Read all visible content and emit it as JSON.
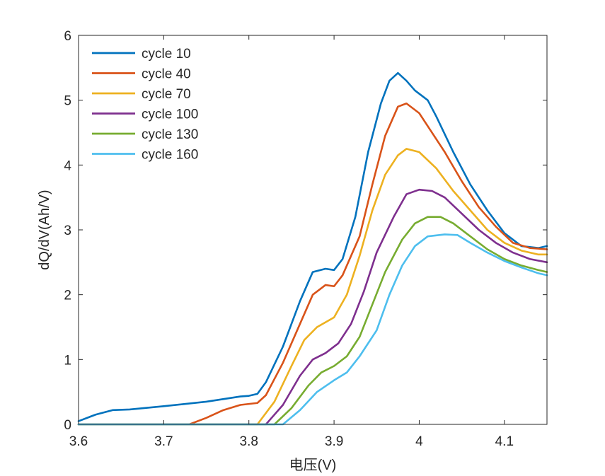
{
  "chart_data": {
    "type": "line",
    "title": "",
    "xlabel": "电压(V)",
    "ylabel": "dQ/dV(Ah/V)",
    "xlim": [
      3.6,
      4.15
    ],
    "ylim": [
      0,
      6
    ],
    "x_ticks": [
      3.6,
      3.7,
      3.8,
      3.9,
      4.0,
      4.1
    ],
    "x_tick_labels": [
      "3.6",
      "3.7",
      "3.8",
      "3.9",
      "4",
      "4.1"
    ],
    "y_ticks": [
      0,
      1,
      2,
      3,
      4,
      5,
      6
    ],
    "y_tick_labels": [
      "0",
      "1",
      "2",
      "3",
      "4",
      "5",
      "6"
    ],
    "grid": false,
    "legend_position": "top-left",
    "series": [
      {
        "name": "cycle 10",
        "color": "#0072BD",
        "points": [
          [
            3.6,
            0.05
          ],
          [
            3.62,
            0.15
          ],
          [
            3.64,
            0.22
          ],
          [
            3.66,
            0.23
          ],
          [
            3.7,
            0.28
          ],
          [
            3.75,
            0.35
          ],
          [
            3.79,
            0.43
          ],
          [
            3.8,
            0.44
          ],
          [
            3.81,
            0.47
          ],
          [
            3.82,
            0.65
          ],
          [
            3.84,
            1.2
          ],
          [
            3.86,
            1.9
          ],
          [
            3.875,
            2.35
          ],
          [
            3.89,
            2.4
          ],
          [
            3.9,
            2.38
          ],
          [
            3.91,
            2.55
          ],
          [
            3.925,
            3.2
          ],
          [
            3.94,
            4.2
          ],
          [
            3.955,
            4.95
          ],
          [
            3.965,
            5.3
          ],
          [
            3.975,
            5.42
          ],
          [
            3.985,
            5.3
          ],
          [
            3.995,
            5.15
          ],
          [
            4.01,
            5.0
          ],
          [
            4.02,
            4.75
          ],
          [
            4.04,
            4.2
          ],
          [
            4.06,
            3.7
          ],
          [
            4.08,
            3.3
          ],
          [
            4.1,
            2.95
          ],
          [
            4.12,
            2.75
          ],
          [
            4.14,
            2.72
          ],
          [
            4.15,
            2.75
          ]
        ]
      },
      {
        "name": "cycle 40",
        "color": "#D95319",
        "points": [
          [
            3.6,
            0
          ],
          [
            3.73,
            0
          ],
          [
            3.75,
            0.1
          ],
          [
            3.77,
            0.22
          ],
          [
            3.79,
            0.3
          ],
          [
            3.81,
            0.33
          ],
          [
            3.82,
            0.45
          ],
          [
            3.84,
            0.95
          ],
          [
            3.86,
            1.55
          ],
          [
            3.875,
            2.0
          ],
          [
            3.89,
            2.15
          ],
          [
            3.9,
            2.13
          ],
          [
            3.91,
            2.3
          ],
          [
            3.93,
            2.9
          ],
          [
            3.945,
            3.7
          ],
          [
            3.96,
            4.45
          ],
          [
            3.975,
            4.9
          ],
          [
            3.985,
            4.95
          ],
          [
            4.0,
            4.8
          ],
          [
            4.01,
            4.6
          ],
          [
            4.03,
            4.2
          ],
          [
            4.05,
            3.75
          ],
          [
            4.07,
            3.35
          ],
          [
            4.09,
            3.05
          ],
          [
            4.11,
            2.8
          ],
          [
            4.13,
            2.72
          ],
          [
            4.15,
            2.7
          ]
        ]
      },
      {
        "name": "cycle 70",
        "color": "#EDB120",
        "points": [
          [
            3.6,
            0
          ],
          [
            3.81,
            0
          ],
          [
            3.83,
            0.35
          ],
          [
            3.85,
            0.9
          ],
          [
            3.865,
            1.3
          ],
          [
            3.88,
            1.5
          ],
          [
            3.9,
            1.65
          ],
          [
            3.915,
            2.0
          ],
          [
            3.93,
            2.6
          ],
          [
            3.945,
            3.3
          ],
          [
            3.96,
            3.85
          ],
          [
            3.975,
            4.15
          ],
          [
            3.985,
            4.25
          ],
          [
            4.0,
            4.2
          ],
          [
            4.02,
            3.95
          ],
          [
            4.04,
            3.6
          ],
          [
            4.06,
            3.3
          ],
          [
            4.08,
            3.0
          ],
          [
            4.1,
            2.8
          ],
          [
            4.12,
            2.68
          ],
          [
            4.14,
            2.62
          ],
          [
            4.15,
            2.62
          ]
        ]
      },
      {
        "name": "cycle 100",
        "color": "#7E2F8E",
        "points": [
          [
            3.6,
            0
          ],
          [
            3.82,
            0
          ],
          [
            3.84,
            0.3
          ],
          [
            3.86,
            0.75
          ],
          [
            3.875,
            1.0
          ],
          [
            3.89,
            1.1
          ],
          [
            3.905,
            1.25
          ],
          [
            3.92,
            1.55
          ],
          [
            3.935,
            2.05
          ],
          [
            3.95,
            2.65
          ],
          [
            3.97,
            3.2
          ],
          [
            3.985,
            3.55
          ],
          [
            4.0,
            3.62
          ],
          [
            4.015,
            3.6
          ],
          [
            4.03,
            3.5
          ],
          [
            4.05,
            3.25
          ],
          [
            4.07,
            3.0
          ],
          [
            4.09,
            2.8
          ],
          [
            4.11,
            2.65
          ],
          [
            4.13,
            2.55
          ],
          [
            4.15,
            2.5
          ]
        ]
      },
      {
        "name": "cycle 130",
        "color": "#77AC30",
        "points": [
          [
            3.6,
            0
          ],
          [
            3.83,
            0
          ],
          [
            3.85,
            0.25
          ],
          [
            3.87,
            0.6
          ],
          [
            3.885,
            0.8
          ],
          [
            3.9,
            0.9
          ],
          [
            3.915,
            1.05
          ],
          [
            3.93,
            1.35
          ],
          [
            3.945,
            1.85
          ],
          [
            3.96,
            2.35
          ],
          [
            3.98,
            2.85
          ],
          [
            3.995,
            3.1
          ],
          [
            4.01,
            3.2
          ],
          [
            4.025,
            3.2
          ],
          [
            4.04,
            3.1
          ],
          [
            4.06,
            2.9
          ],
          [
            4.08,
            2.7
          ],
          [
            4.1,
            2.55
          ],
          [
            4.12,
            2.45
          ],
          [
            4.14,
            2.38
          ],
          [
            4.15,
            2.35
          ]
        ]
      },
      {
        "name": "cycle 160",
        "color": "#4DBEEE",
        "points": [
          [
            3.6,
            0
          ],
          [
            3.84,
            0
          ],
          [
            3.86,
            0.22
          ],
          [
            3.88,
            0.5
          ],
          [
            3.9,
            0.68
          ],
          [
            3.915,
            0.8
          ],
          [
            3.93,
            1.05
          ],
          [
            3.95,
            1.45
          ],
          [
            3.965,
            2.0
          ],
          [
            3.98,
            2.45
          ],
          [
            3.995,
            2.75
          ],
          [
            4.01,
            2.9
          ],
          [
            4.03,
            2.93
          ],
          [
            4.045,
            2.92
          ],
          [
            4.06,
            2.8
          ],
          [
            4.08,
            2.65
          ],
          [
            4.1,
            2.52
          ],
          [
            4.12,
            2.42
          ],
          [
            4.14,
            2.33
          ],
          [
            4.15,
            2.3
          ]
        ]
      }
    ]
  }
}
